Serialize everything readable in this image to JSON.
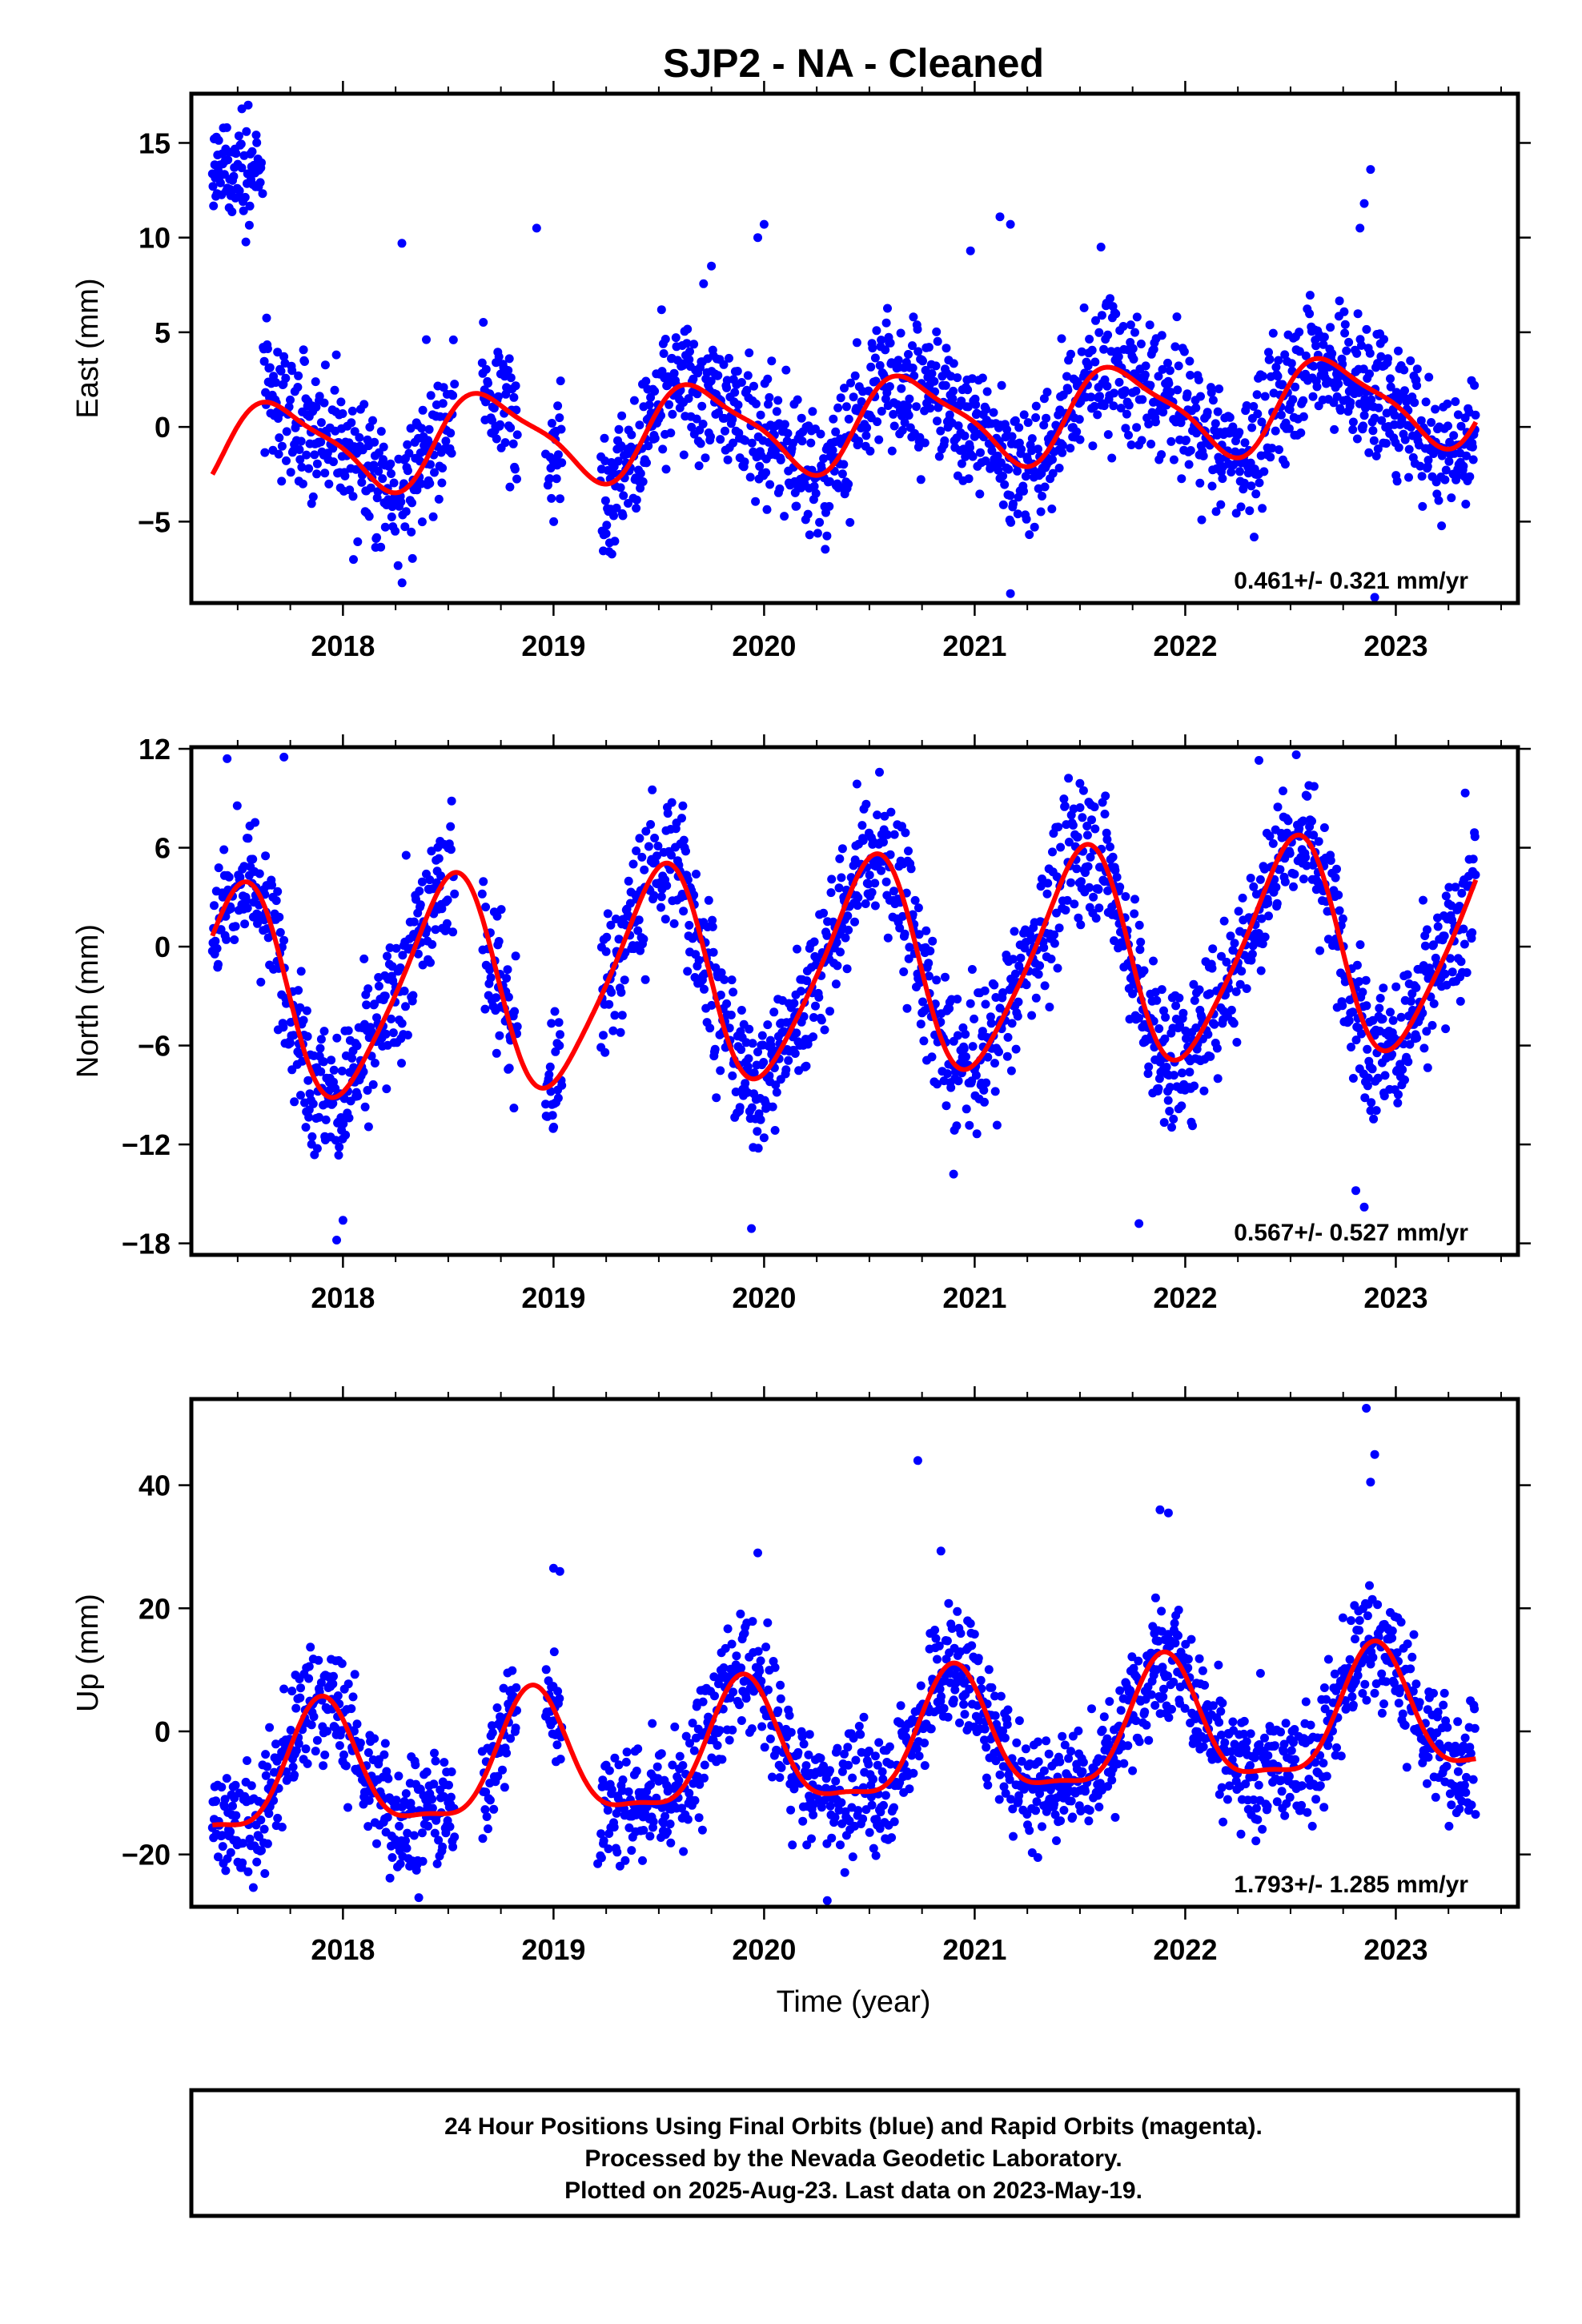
{
  "title": "SJP2  - NA - Cleaned",
  "colors": {
    "data": "#0000ff",
    "fit": "#ff0000",
    "frame": "#000000"
  },
  "footer": {
    "line1": "24 Hour Positions Using Final Orbits (blue) and Rapid Orbits (magenta).",
    "line2": "Processed by the Nevada Geodetic Laboratory.",
    "line3": "Plotted on 2025-Aug-23. Last data on 2023-May-19."
  },
  "chart_data": [
    {
      "type": "scatter",
      "ylabel": "East (mm)",
      "xlabel": "",
      "xlim": [
        2017.28,
        2023.58
      ],
      "ylim": [
        -9.3,
        17.6
      ],
      "xticks": [
        "2018",
        "2019",
        "2020",
        "2021",
        "2022",
        "2023"
      ],
      "yticks": [
        "15",
        "10",
        "5",
        "0",
        "−5"
      ],
      "ytick_values": [
        15,
        10,
        5,
        0,
        -5
      ],
      "rate": "0.461+/- 0.321 mm/yr",
      "fit": {
        "name": "",
        "trend_mm_per_yr": 0.461,
        "offset_mm": 0.0,
        "annual_amp_mm": 2.3,
        "annual_peak_year_fraction": 0.7,
        "semiannual_amp_mm": 0.6,
        "semiannual_peak_year_fraction": 0.55,
        "x_start": 2017.38,
        "x_end": 2023.38
      },
      "points": {
        "noise_mm": 1.8,
        "start": 2017.38,
        "end": 2023.38,
        "gaps": [
          [
            2018.53,
            2018.66
          ],
          [
            2018.83,
            2018.96
          ],
          [
            2019.04,
            2019.22
          ]
        ],
        "early_offset": {
          "until": 2017.62,
          "value_mm": 13.5
        },
        "outliers": [
          [
            2017.52,
            16.8
          ],
          [
            2017.55,
            17.0
          ],
          [
            2018.28,
            9.7
          ],
          [
            2018.92,
            10.5
          ],
          [
            2020.0,
            10.7
          ],
          [
            2019.97,
            10.0
          ],
          [
            2020.98,
            9.3
          ],
          [
            2021.12,
            11.1
          ],
          [
            2021.17,
            10.7
          ],
          [
            2022.85,
            11.8
          ],
          [
            2022.88,
            13.6
          ],
          [
            2022.83,
            10.5
          ],
          [
            2021.17,
            -8.8
          ],
          [
            2022.9,
            -9.0
          ],
          [
            2018.05,
            -7.0
          ],
          [
            2019.75,
            8.5
          ],
          [
            2021.6,
            9.5
          ]
        ]
      },
      "series": [
        {
          "name": "",
          "color": "#0000ff"
        }
      ]
    },
    {
      "type": "scatter",
      "ylabel": "North (mm)",
      "xlabel": "",
      "xlim": [
        2017.28,
        2023.58
      ],
      "ylim": [
        -18.7,
        12.1
      ],
      "xticks": [
        "2018",
        "2019",
        "2020",
        "2021",
        "2022",
        "2023"
      ],
      "yticks": [
        "12",
        "6",
        "0",
        "−6",
        "−12",
        "−18"
      ],
      "ytick_values": [
        12,
        6,
        0,
        -6,
        -12,
        -18
      ],
      "rate": "0.567+/- 0.527 mm/yr",
      "fit": {
        "name": "",
        "trend_mm_per_yr": 0.567,
        "offset_mm": -1.6,
        "annual_amp_mm": 6.4,
        "annual_peak_year_fraction": 0.5,
        "semiannual_amp_mm": 1.0,
        "semiannual_peak_year_fraction": 0.1,
        "x_start": 2017.38,
        "x_end": 2023.38
      },
      "points": {
        "noise_mm": 2.2,
        "start": 2017.38,
        "end": 2023.38,
        "gaps": [
          [
            2018.53,
            2018.66
          ],
          [
            2018.83,
            2018.96
          ],
          [
            2019.04,
            2019.22
          ]
        ],
        "early_offset": null,
        "outliers": [
          [
            2017.45,
            11.4
          ],
          [
            2017.72,
            11.5
          ],
          [
            2017.97,
            -17.8
          ],
          [
            2018.0,
            -16.6
          ],
          [
            2019.94,
            -17.1
          ],
          [
            2021.78,
            -16.8
          ],
          [
            2022.85,
            -15.8
          ],
          [
            2022.81,
            -14.8
          ],
          [
            2021.5,
            9.9
          ],
          [
            2022.35,
            11.3
          ],
          [
            2020.9,
            -13.8
          ]
        ]
      },
      "series": [
        {
          "name": "",
          "color": "#0000ff"
        }
      ]
    },
    {
      "type": "scatter",
      "ylabel": "Up (mm)",
      "xlabel": "Time (year)",
      "xlim": [
        2017.28,
        2023.58
      ],
      "ylim": [
        -28.5,
        54
      ],
      "xticks": [
        "2018",
        "2019",
        "2020",
        "2021",
        "2022",
        "2023"
      ],
      "yticks": [
        "40",
        "20",
        "0",
        "−20"
      ],
      "ytick_values": [
        40,
        20,
        0,
        -20
      ],
      "rate": "1.793+/- 1.285 mm/yr",
      "fit": {
        "name": "",
        "trend_mm_per_yr": 1.793,
        "offset_mm": -3.5,
        "annual_amp_mm": 10.0,
        "annual_peak_year_fraction": 0.9,
        "semiannual_amp_mm": 3.0,
        "semiannual_peak_year_fraction": 0.9,
        "x_start": 2017.38,
        "x_end": 2023.38
      },
      "points": {
        "noise_mm": 5.0,
        "start": 2017.38,
        "end": 2023.38,
        "gaps": [
          [
            2018.53,
            2018.66
          ],
          [
            2018.83,
            2018.96
          ],
          [
            2019.04,
            2019.22
          ]
        ],
        "early_offset": null,
        "outliers": [
          [
            2022.86,
            52.5
          ],
          [
            2022.9,
            45.0
          ],
          [
            2022.88,
            40.5
          ],
          [
            2020.73,
            44.0
          ],
          [
            2020.84,
            29.3
          ],
          [
            2019.97,
            29.0
          ],
          [
            2019.0,
            26.5
          ],
          [
            2019.03,
            26.0
          ],
          [
            2021.88,
            36.0
          ],
          [
            2021.92,
            35.5
          ],
          [
            2020.3,
            -27.5
          ],
          [
            2019.21,
            -21.5
          ],
          [
            2021.3,
            -20.5
          ],
          [
            2017.55,
            -14.5
          ]
        ]
      },
      "series": [
        {
          "name": "",
          "color": "#0000ff"
        }
      ]
    }
  ]
}
